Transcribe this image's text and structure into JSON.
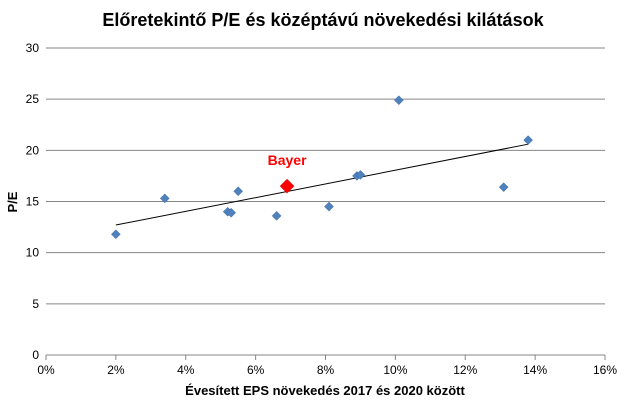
{
  "chart_data": {
    "type": "scatter",
    "title": "Előretekintő P/E és középtávú növekedési kilátások",
    "xlabel": "Évesített EPS növekedés 2017 és 2020 között",
    "ylabel": "P/E",
    "xlim": [
      0,
      16
    ],
    "ylim": [
      0,
      30
    ],
    "x_ticks": [
      0,
      2,
      4,
      6,
      8,
      10,
      12,
      14,
      16
    ],
    "x_tick_labels": [
      "0%",
      "2%",
      "4%",
      "6%",
      "8%",
      "10%",
      "12%",
      "14%",
      "16%"
    ],
    "y_ticks": [
      0,
      5,
      10,
      15,
      20,
      25,
      30
    ],
    "y_tick_labels": [
      "0",
      "5",
      "10",
      "15",
      "20",
      "25",
      "30"
    ],
    "grid": "horizontal",
    "legend": "none",
    "marker_color": "#4F81BD",
    "highlight_color": "#FF0000",
    "trendline_color": "#000000",
    "points": [
      {
        "x": 2.0,
        "y": 11.8
      },
      {
        "x": 3.4,
        "y": 15.3
      },
      {
        "x": 5.2,
        "y": 14.0
      },
      {
        "x": 5.3,
        "y": 13.9
      },
      {
        "x": 5.5,
        "y": 16.0
      },
      {
        "x": 6.6,
        "y": 13.6
      },
      {
        "x": 8.1,
        "y": 14.5
      },
      {
        "x": 8.9,
        "y": 17.5
      },
      {
        "x": 9.0,
        "y": 17.6
      },
      {
        "x": 10.1,
        "y": 24.9
      },
      {
        "x": 13.1,
        "y": 16.4
      },
      {
        "x": 13.8,
        "y": 21.0
      }
    ],
    "highlight": {
      "label": "Bayer",
      "x": 6.9,
      "y": 16.5
    },
    "trendline": {
      "x": [
        2.0,
        13.8
      ],
      "y": [
        12.7,
        20.6
      ]
    }
  }
}
